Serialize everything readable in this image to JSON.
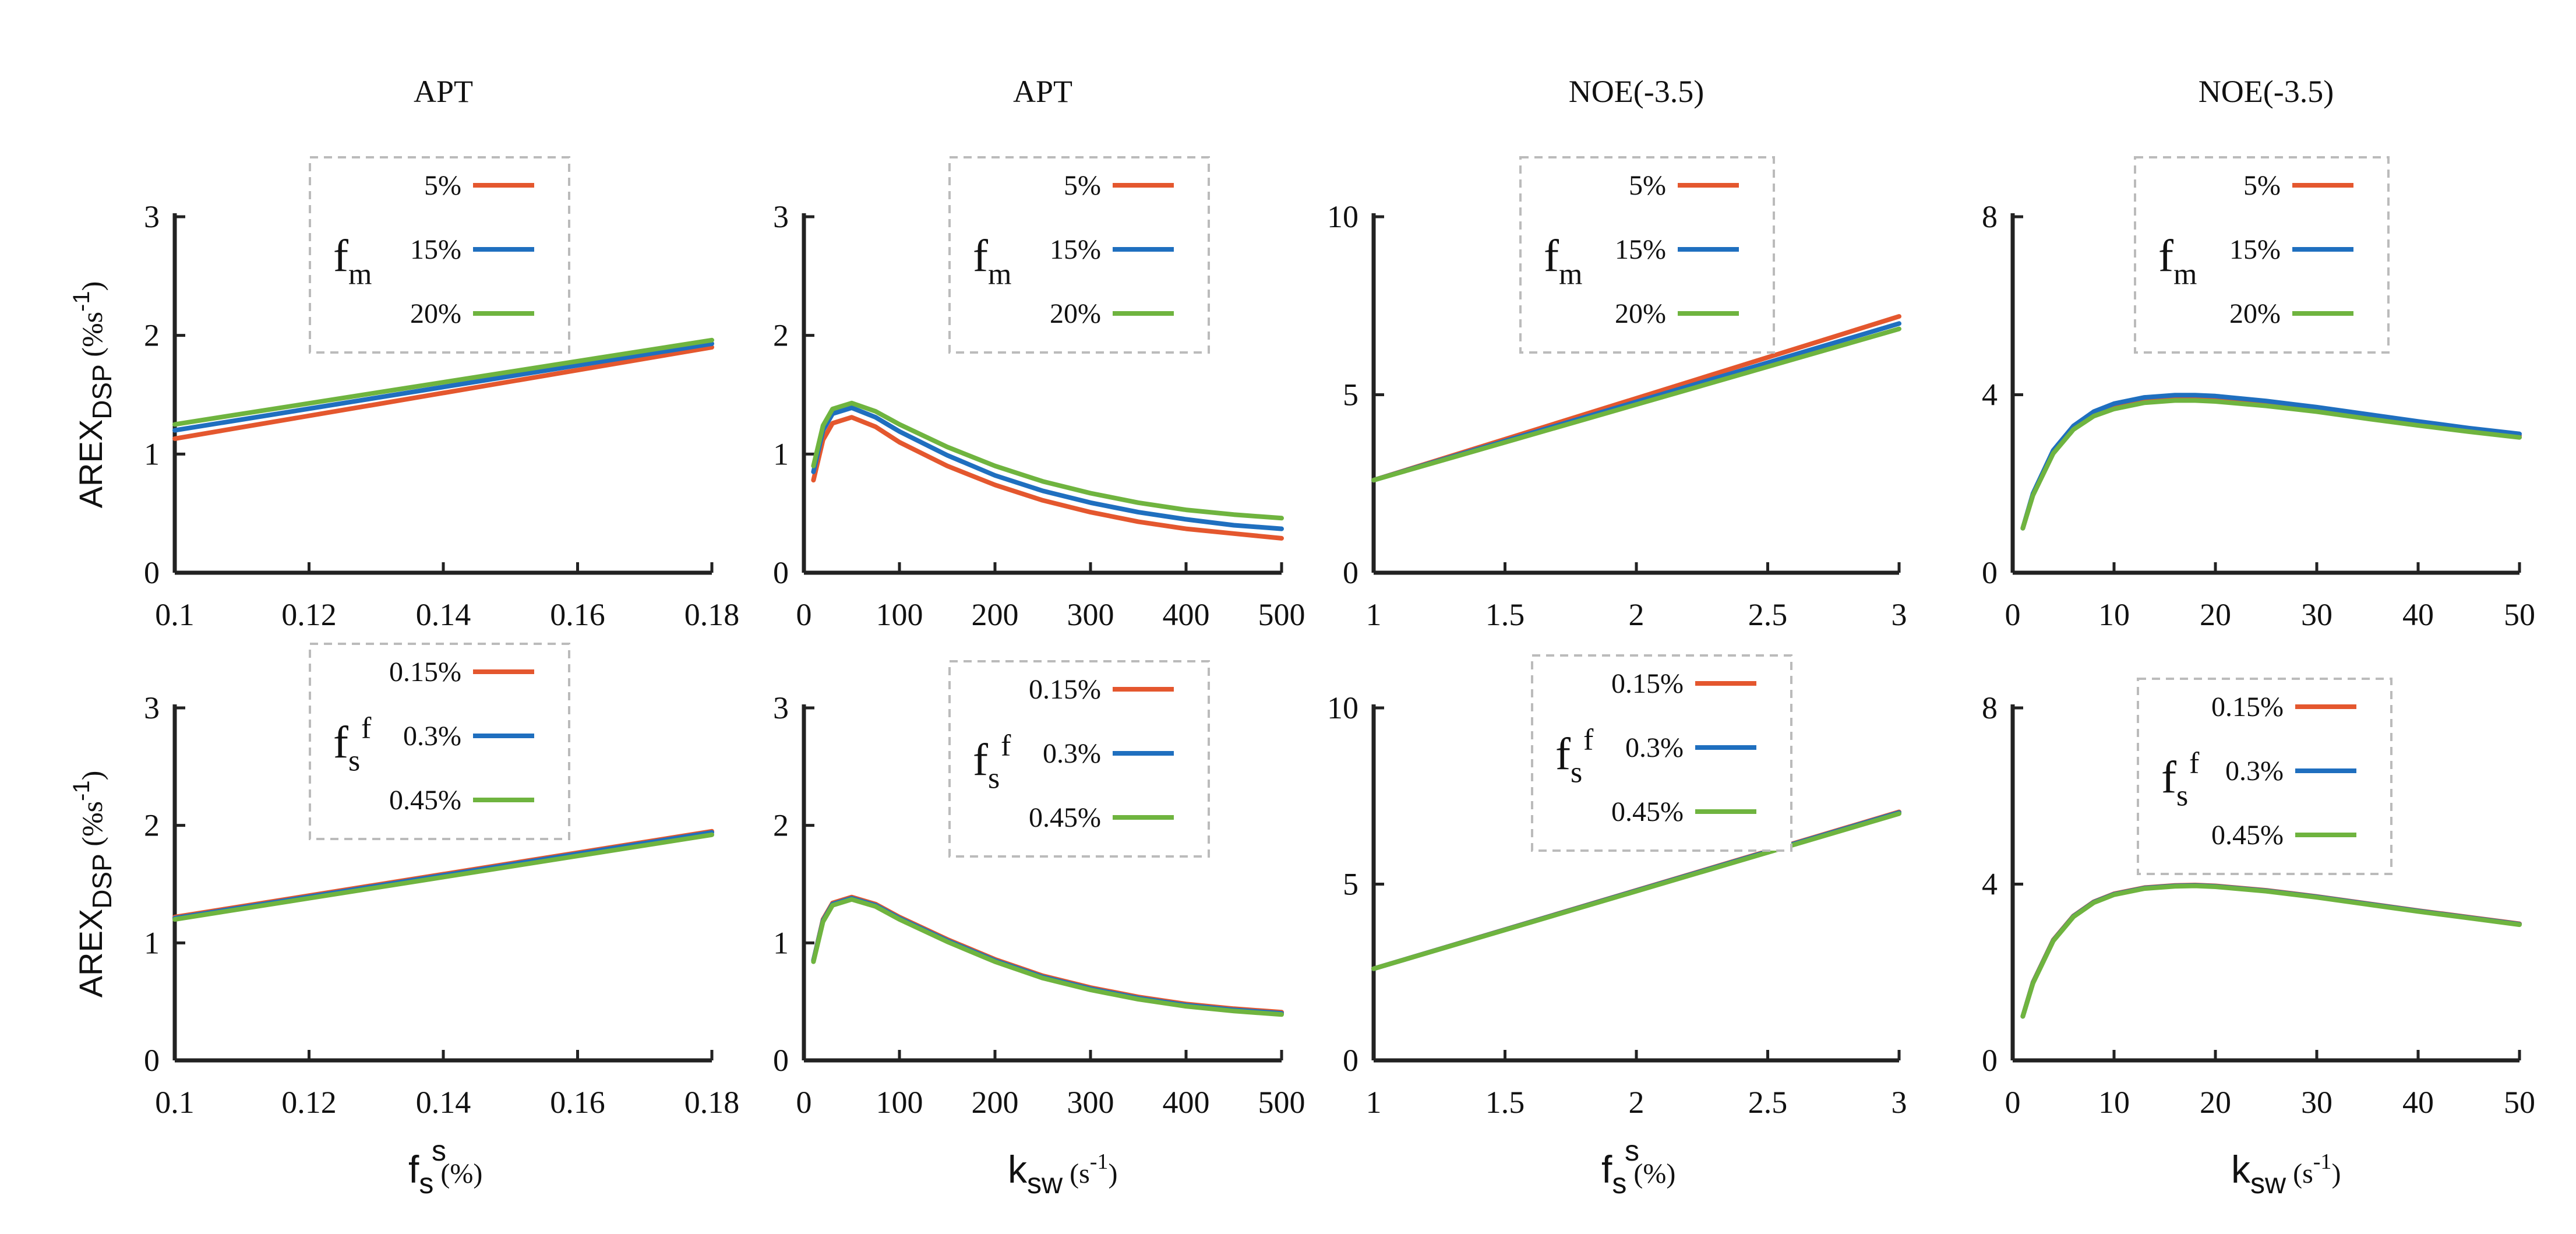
{
  "figure": {
    "y_axis_label_main": "AREX",
    "y_axis_label_sub": "DSP",
    "y_axis_label_unit_open": " (%s",
    "y_axis_label_unit_exp": "-1",
    "y_axis_label_unit_close": ")",
    "x_axis_labels": [
      {
        "main": "f",
        "sup": "s",
        "sub": "s",
        "unit": " (%)"
      },
      {
        "main": "k",
        "sup": "",
        "sub": "sw",
        "unit": " (s",
        "unit_exp": "-1",
        "unit_close": ")"
      },
      {
        "main": "f",
        "sup": "s",
        "sub": "s",
        "unit": " (%)"
      },
      {
        "main": "k",
        "sup": "",
        "sub": "sw",
        "unit": "  (s",
        "unit_exp": "-1",
        "unit_close": ")"
      }
    ]
  },
  "colors": {
    "series_1": "#e4572e",
    "series_2": "#1f6fbf",
    "series_3": "#6fb43f",
    "axis": "#222222",
    "legend_border": "#bbbbbb"
  },
  "chart_data": [
    {
      "type": "line",
      "row": 0,
      "col": 0,
      "title": "APT",
      "legend_var": "f",
      "legend_var_sub": "m",
      "legend_var_sup": "",
      "xlim": [
        0.1,
        0.18
      ],
      "ylim": [
        0,
        3
      ],
      "xticks": [
        0.1,
        0.12,
        0.14,
        0.16,
        0.18
      ],
      "xtick_labels": [
        "0.1",
        "0.12",
        "0.14",
        "0.16",
        "0.18"
      ],
      "yticks": [
        0,
        1,
        2,
        3
      ],
      "ytick_labels": [
        "0",
        "1",
        "2",
        "3"
      ],
      "series": [
        {
          "name": "5%",
          "x": [
            0.1,
            0.18
          ],
          "y": [
            1.13,
            1.9
          ]
        },
        {
          "name": "15%",
          "x": [
            0.1,
            0.18
          ],
          "y": [
            1.2,
            1.93
          ]
        },
        {
          "name": "20%",
          "x": [
            0.1,
            0.18
          ],
          "y": [
            1.25,
            1.96
          ]
        }
      ]
    },
    {
      "type": "line",
      "row": 0,
      "col": 1,
      "title": "APT",
      "legend_var": "f",
      "legend_var_sub": "m",
      "legend_var_sup": "",
      "xlim": [
        0,
        500
      ],
      "ylim": [
        0,
        3
      ],
      "xticks": [
        0,
        100,
        200,
        300,
        400,
        500
      ],
      "xtick_labels": [
        "0",
        "100",
        "200",
        "300",
        "400",
        "500"
      ],
      "yticks": [
        0,
        1,
        2,
        3
      ],
      "ytick_labels": [
        "0",
        "1",
        "2",
        "3"
      ],
      "series": [
        {
          "name": "5%",
          "x": [
            10,
            20,
            30,
            50,
            75,
            100,
            150,
            200,
            250,
            300,
            350,
            400,
            450,
            500
          ],
          "y": [
            0.78,
            1.12,
            1.26,
            1.31,
            1.23,
            1.1,
            0.9,
            0.74,
            0.61,
            0.51,
            0.43,
            0.37,
            0.33,
            0.29
          ]
        },
        {
          "name": "15%",
          "x": [
            10,
            20,
            30,
            50,
            75,
            100,
            150,
            200,
            250,
            300,
            350,
            400,
            450,
            500
          ],
          "y": [
            0.85,
            1.2,
            1.34,
            1.39,
            1.31,
            1.19,
            0.99,
            0.82,
            0.69,
            0.59,
            0.51,
            0.45,
            0.4,
            0.37
          ]
        },
        {
          "name": "20%",
          "x": [
            10,
            20,
            30,
            50,
            75,
            100,
            150,
            200,
            250,
            300,
            350,
            400,
            450,
            500
          ],
          "y": [
            0.9,
            1.24,
            1.38,
            1.43,
            1.36,
            1.25,
            1.06,
            0.9,
            0.77,
            0.67,
            0.59,
            0.53,
            0.49,
            0.46
          ]
        }
      ]
    },
    {
      "type": "line",
      "row": 0,
      "col": 2,
      "title": "NOE(-3.5)",
      "legend_var": "f",
      "legend_var_sub": "m",
      "legend_var_sup": "",
      "xlim": [
        1,
        3
      ],
      "ylim": [
        0,
        10
      ],
      "xticks": [
        1,
        1.5,
        2,
        2.5,
        3
      ],
      "xtick_labels": [
        "1",
        "1.5",
        "2",
        "2.5",
        "3"
      ],
      "yticks": [
        0,
        5,
        10
      ],
      "ytick_labels": [
        "0",
        "5",
        "10"
      ],
      "series": [
        {
          "name": "5%",
          "x": [
            1,
            3
          ],
          "y": [
            2.6,
            7.2
          ]
        },
        {
          "name": "15%",
          "x": [
            1,
            3
          ],
          "y": [
            2.6,
            7.0
          ]
        },
        {
          "name": "20%",
          "x": [
            1,
            3
          ],
          "y": [
            2.6,
            6.85
          ]
        }
      ]
    },
    {
      "type": "line",
      "row": 0,
      "col": 3,
      "title": "NOE(-3.5)",
      "legend_var": "f",
      "legend_var_sub": "m",
      "legend_var_sup": "",
      "xlim": [
        0,
        50
      ],
      "ylim": [
        0,
        8
      ],
      "xticks": [
        0,
        10,
        20,
        30,
        40,
        50
      ],
      "xtick_labels": [
        "0",
        "10",
        "20",
        "30",
        "40",
        "50"
      ],
      "yticks": [
        0,
        4,
        8
      ],
      "ytick_labels": [
        "0",
        "4",
        "8"
      ],
      "series": [
        {
          "name": "5%",
          "x": [
            1,
            2,
            4,
            6,
            8,
            10,
            13,
            16,
            18,
            20,
            25,
            30,
            35,
            40,
            45,
            50
          ],
          "y": [
            1.0,
            1.75,
            2.7,
            3.25,
            3.55,
            3.72,
            3.86,
            3.92,
            3.92,
            3.9,
            3.8,
            3.66,
            3.5,
            3.35,
            3.21,
            3.08
          ]
        },
        {
          "name": "15%",
          "x": [
            1,
            2,
            4,
            6,
            8,
            10,
            13,
            16,
            18,
            20,
            25,
            30,
            35,
            40,
            45,
            50
          ],
          "y": [
            1.0,
            1.78,
            2.75,
            3.3,
            3.62,
            3.8,
            3.94,
            3.99,
            3.99,
            3.97,
            3.86,
            3.72,
            3.56,
            3.4,
            3.25,
            3.12
          ]
        },
        {
          "name": "20%",
          "x": [
            1,
            2,
            4,
            6,
            8,
            10,
            13,
            16,
            18,
            20,
            25,
            30,
            35,
            40,
            45,
            50
          ],
          "y": [
            1.0,
            1.74,
            2.68,
            3.22,
            3.52,
            3.68,
            3.82,
            3.87,
            3.87,
            3.85,
            3.75,
            3.62,
            3.46,
            3.31,
            3.17,
            3.04
          ]
        }
      ]
    },
    {
      "type": "line",
      "row": 1,
      "col": 0,
      "title": "",
      "legend_var": "f",
      "legend_var_sub": "s",
      "legend_var_sup": "f",
      "xlim": [
        0.1,
        0.18
      ],
      "ylim": [
        0,
        3
      ],
      "xticks": [
        0.1,
        0.12,
        0.14,
        0.16,
        0.18
      ],
      "xtick_labels": [
        "0.1",
        "0.12",
        "0.14",
        "0.16",
        "0.18"
      ],
      "yticks": [
        0,
        1,
        2,
        3
      ],
      "ytick_labels": [
        "0",
        "1",
        "2",
        "3"
      ],
      "series": [
        {
          "name": "0.15%",
          "x": [
            0.1,
            0.18
          ],
          "y": [
            1.22,
            1.95
          ]
        },
        {
          "name": "0.3%",
          "x": [
            0.1,
            0.18
          ],
          "y": [
            1.21,
            1.94
          ]
        },
        {
          "name": "0.45%",
          "x": [
            0.1,
            0.18
          ],
          "y": [
            1.2,
            1.92
          ]
        }
      ]
    },
    {
      "type": "line",
      "row": 1,
      "col": 1,
      "title": "",
      "legend_var": "f",
      "legend_var_sub": "s",
      "legend_var_sup": "f",
      "xlim": [
        0,
        500
      ],
      "ylim": [
        0,
        3
      ],
      "xticks": [
        0,
        100,
        200,
        300,
        400,
        500
      ],
      "xtick_labels": [
        "0",
        "100",
        "200",
        "300",
        "400",
        "500"
      ],
      "yticks": [
        0,
        1,
        2,
        3
      ],
      "ytick_labels": [
        "0",
        "1",
        "2",
        "3"
      ],
      "series": [
        {
          "name": "0.15%",
          "x": [
            10,
            20,
            30,
            50,
            75,
            100,
            150,
            200,
            250,
            300,
            350,
            400,
            450,
            500
          ],
          "y": [
            0.85,
            1.2,
            1.34,
            1.39,
            1.33,
            1.22,
            1.03,
            0.86,
            0.72,
            0.62,
            0.54,
            0.48,
            0.44,
            0.41
          ]
        },
        {
          "name": "0.3%",
          "x": [
            10,
            20,
            30,
            50,
            75,
            100,
            150,
            200,
            250,
            300,
            350,
            400,
            450,
            500
          ],
          "y": [
            0.85,
            1.19,
            1.33,
            1.38,
            1.32,
            1.21,
            1.02,
            0.85,
            0.71,
            0.61,
            0.53,
            0.47,
            0.43,
            0.4
          ]
        },
        {
          "name": "0.45%",
          "x": [
            10,
            20,
            30,
            50,
            75,
            100,
            150,
            200,
            250,
            300,
            350,
            400,
            450,
            500
          ],
          "y": [
            0.84,
            1.18,
            1.32,
            1.37,
            1.31,
            1.2,
            1.01,
            0.84,
            0.7,
            0.6,
            0.52,
            0.46,
            0.42,
            0.39
          ]
        }
      ]
    },
    {
      "type": "line",
      "row": 1,
      "col": 2,
      "title": "",
      "legend_var": "f",
      "legend_var_sub": "s",
      "legend_var_sup": "f",
      "xlim": [
        1,
        3
      ],
      "ylim": [
        0,
        10
      ],
      "xticks": [
        1,
        1.5,
        2,
        2.5,
        3
      ],
      "xtick_labels": [
        "1",
        "1.5",
        "2",
        "2.5",
        "3"
      ],
      "yticks": [
        0,
        5,
        10
      ],
      "ytick_labels": [
        "0",
        "5",
        "10"
      ],
      "series": [
        {
          "name": "0.15%",
          "x": [
            1,
            3
          ],
          "y": [
            2.6,
            7.05
          ]
        },
        {
          "name": "0.3%",
          "x": [
            1,
            3
          ],
          "y": [
            2.6,
            7.03
          ]
        },
        {
          "name": "0.45%",
          "x": [
            1,
            3
          ],
          "y": [
            2.6,
            7.0
          ]
        }
      ]
    },
    {
      "type": "line",
      "row": 1,
      "col": 3,
      "title": "",
      "legend_var": "f",
      "legend_var_sub": "s",
      "legend_var_sup": "f",
      "xlim": [
        0,
        50
      ],
      "ylim": [
        0,
        8
      ],
      "xticks": [
        0,
        10,
        20,
        30,
        40,
        50
      ],
      "xtick_labels": [
        "0",
        "10",
        "20",
        "30",
        "40",
        "50"
      ],
      "yticks": [
        0,
        4,
        8
      ],
      "ytick_labels": [
        "0",
        "4",
        "8"
      ],
      "series": [
        {
          "name": "0.15%",
          "x": [
            1,
            2,
            4,
            6,
            8,
            10,
            13,
            16,
            18,
            20,
            25,
            30,
            35,
            40,
            45,
            50
          ],
          "y": [
            1.0,
            1.77,
            2.73,
            3.28,
            3.6,
            3.78,
            3.92,
            3.97,
            3.98,
            3.96,
            3.86,
            3.72,
            3.56,
            3.4,
            3.25,
            3.1
          ]
        },
        {
          "name": "0.3%",
          "x": [
            1,
            2,
            4,
            6,
            8,
            10,
            13,
            16,
            18,
            20,
            25,
            30,
            35,
            40,
            45,
            50
          ],
          "y": [
            1.0,
            1.76,
            2.72,
            3.27,
            3.59,
            3.77,
            3.91,
            3.96,
            3.97,
            3.95,
            3.85,
            3.71,
            3.55,
            3.39,
            3.24,
            3.09
          ]
        },
        {
          "name": "0.45%",
          "x": [
            1,
            2,
            4,
            6,
            8,
            10,
            13,
            16,
            18,
            20,
            25,
            30,
            35,
            40,
            45,
            50
          ],
          "y": [
            1.0,
            1.75,
            2.71,
            3.26,
            3.58,
            3.76,
            3.9,
            3.95,
            3.96,
            3.94,
            3.84,
            3.7,
            3.54,
            3.38,
            3.23,
            3.08
          ]
        }
      ]
    }
  ]
}
